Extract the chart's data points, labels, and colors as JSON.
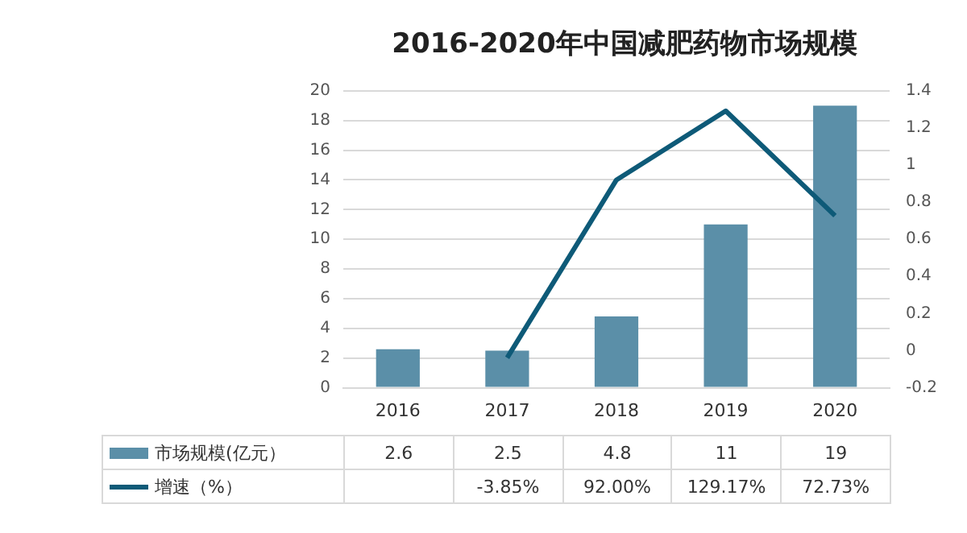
{
  "chart_data": {
    "type": "bar",
    "title": "2016-2020年中国减肥药物市场规模",
    "categories": [
      "2016",
      "2017",
      "2018",
      "2019",
      "2020"
    ],
    "series": [
      {
        "name": "市场规模(亿元）",
        "color": "#5b8fa8",
        "values": [
          2.6,
          2.5,
          4.8,
          11,
          19
        ],
        "value_labels": [
          "2.6",
          "2.5",
          "4.8",
          "11",
          "19"
        ]
      },
      {
        "name": "增速（%）",
        "type": "line",
        "axis": "y2",
        "color": "#0e5a78",
        "values": [
          null,
          -0.0385,
          0.92,
          1.2917,
          0.7273
        ],
        "value_labels": [
          null,
          "-3.85%",
          "92.00%",
          "129.17%",
          "72.73%"
        ]
      }
    ],
    "ylim": [
      0,
      20
    ],
    "yticks": [
      0,
      2,
      4,
      6,
      8,
      10,
      12,
      14,
      16,
      18,
      20
    ],
    "y2lim": [
      -0.2,
      1.4
    ],
    "y2ticks": [
      -0.2,
      0,
      0.2,
      0.4,
      0.6,
      0.8,
      1,
      1.2,
      1.4
    ],
    "grid": "y",
    "legend": "bottom",
    "marker": "none",
    "line_style": "solid"
  }
}
